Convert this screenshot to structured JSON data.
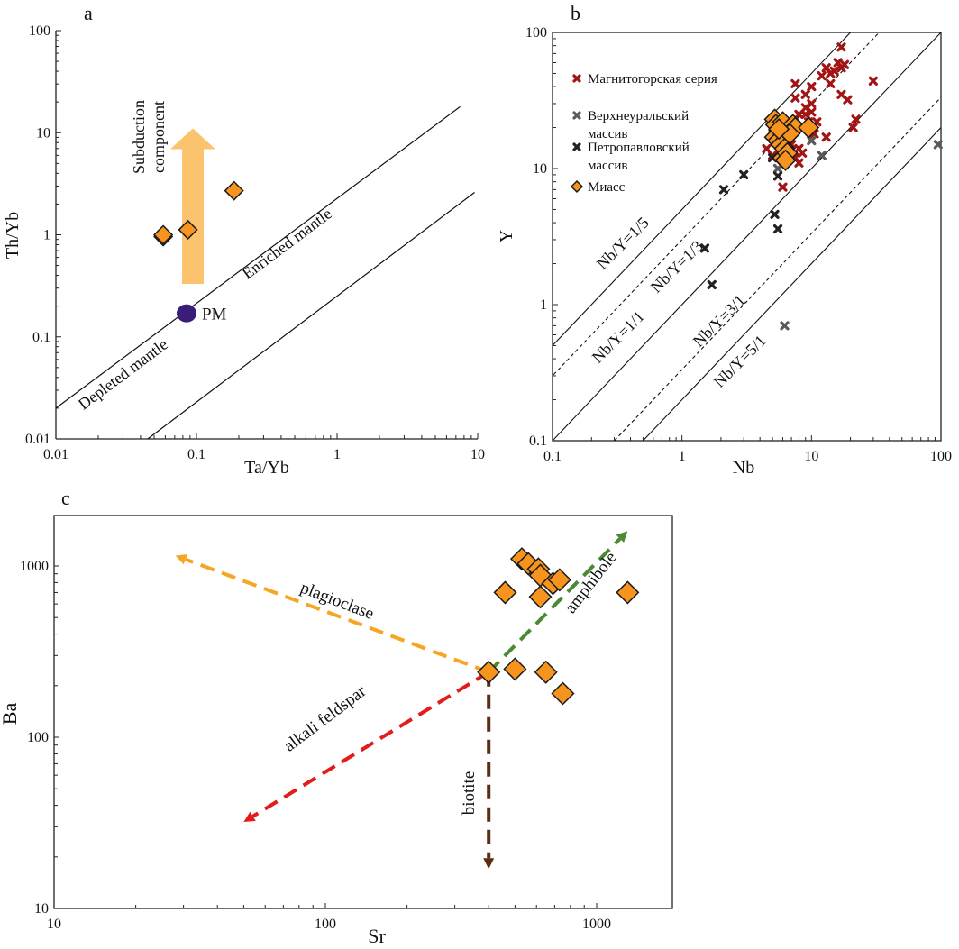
{
  "chart_data": [
    {
      "panel": "a",
      "type": "scatter",
      "title": "a",
      "xlabel": "Ta/Yb",
      "ylabel": "Th/Yb",
      "xscale": "log",
      "yscale": "log",
      "xlim": [
        0.01,
        10
      ],
      "ylim": [
        0.01,
        100
      ],
      "xticks": [
        "0.01",
        "0.1",
        "1",
        "10"
      ],
      "yticks": [
        "0.01",
        "0.1",
        "1",
        "10",
        "100"
      ],
      "grid": false,
      "mantle_array_lines": [
        {
          "name": "upper",
          "points": [
            [
              0.01,
              0.02
            ],
            [
              7.5,
              18
            ]
          ]
        },
        {
          "name": "lower",
          "points": [
            [
              0.045,
              0.01
            ],
            [
              9.5,
              2.6
            ]
          ]
        }
      ],
      "region_labels": [
        "Depleted mantle",
        "Enriched mantle"
      ],
      "reference_point": {
        "label": "PM",
        "x": 0.085,
        "y": 0.17,
        "color": "#3a1d78"
      },
      "arrow": {
        "label_line1": "Subduction",
        "label_line2": "component",
        "from_y": 0.33,
        "to_y": 11,
        "x": 0.1,
        "color": "#fcc36e"
      },
      "series": [
        {
          "name": "Миасс",
          "marker": "diamond",
          "color": "#f7941d",
          "points": [
            [
              0.058,
              0.96
            ],
            [
              0.058,
              1.0
            ],
            [
              0.087,
              1.12
            ],
            [
              0.185,
              2.7
            ]
          ]
        }
      ]
    },
    {
      "panel": "b",
      "type": "scatter",
      "title": "b",
      "xlabel": "Nb",
      "ylabel": "Y",
      "xscale": "log",
      "yscale": "log",
      "xlim": [
        0.1,
        100
      ],
      "ylim": [
        0.1,
        100
      ],
      "xticks": [
        "0.1",
        "1",
        "10",
        "100"
      ],
      "yticks": [
        "0.1",
        "1",
        "10",
        "100"
      ],
      "grid": false,
      "ratio_lines": [
        {
          "label": "Nb/Y=1/5",
          "ratio": 0.2,
          "style": "solid"
        },
        {
          "label": "Nb/Y=1/3",
          "ratio": 0.3333,
          "style": "dashed"
        },
        {
          "label": "Nb/Y=1/1",
          "ratio": 1,
          "style": "solid"
        },
        {
          "label": "Nb/Y=3/1",
          "ratio": 3,
          "style": "dashed"
        },
        {
          "label": "Nb/Y=5/1",
          "ratio": 5,
          "style": "solid"
        }
      ],
      "legend": {
        "position": "top-left"
      },
      "series": [
        {
          "name": "Магнитогорская серия",
          "marker": "x",
          "color": "#a31515",
          "points": [
            [
              17,
              78
            ],
            [
              13,
              55
            ],
            [
              14,
              50
            ],
            [
              15,
              52
            ],
            [
              16,
              60
            ],
            [
              17,
              55
            ],
            [
              18,
              58
            ],
            [
              12,
              48
            ],
            [
              14,
              42
            ],
            [
              10,
              40
            ],
            [
              9,
              35
            ],
            [
              7.5,
              42
            ],
            [
              7.5,
              33
            ],
            [
              17,
              35
            ],
            [
              19,
              32
            ],
            [
              30,
              44
            ],
            [
              10,
              30
            ],
            [
              9,
              28
            ],
            [
              10,
              26
            ],
            [
              9,
              25
            ],
            [
              8,
              25
            ],
            [
              9.5,
              22
            ],
            [
              11,
              22
            ],
            [
              7,
              15
            ],
            [
              8,
              14
            ],
            [
              7.5,
              12
            ],
            [
              8,
              11
            ],
            [
              8.5,
              13
            ],
            [
              10.5,
              18
            ],
            [
              13,
              17
            ],
            [
              22,
              23
            ],
            [
              21,
              20
            ],
            [
              4.5,
              14
            ],
            [
              5,
              12.5
            ],
            [
              6,
              7.3
            ]
          ]
        },
        {
          "name": "Верхнеуральский массив",
          "marker": "x",
          "color": "#5a5a5a",
          "points": [
            [
              10,
              16
            ],
            [
              12,
              12.5
            ],
            [
              5.5,
              10
            ],
            [
              95,
              15
            ],
            [
              6.2,
              0.7
            ]
          ]
        },
        {
          "name": "Петропавловский массив",
          "marker": "x",
          "color": "#222222",
          "points": [
            [
              3,
              9
            ],
            [
              2.1,
              7
            ],
            [
              5.5,
              8.8
            ],
            [
              5.2,
              4.6
            ],
            [
              5.5,
              3.6
            ],
            [
              1.5,
              2.6
            ],
            [
              1.7,
              1.4
            ],
            [
              5,
              12
            ]
          ]
        },
        {
          "name": "Миасс",
          "marker": "diamond",
          "color": "#f7941d",
          "points": [
            [
              5.2,
              23
            ],
            [
              5.3,
              21
            ],
            [
              5.6,
              19
            ],
            [
              6.0,
              22
            ],
            [
              5.2,
              17
            ],
            [
              5.5,
              16
            ],
            [
              5.8,
              15
            ],
            [
              6.2,
              14
            ],
            [
              6.0,
              12
            ],
            [
              6.5,
              13
            ],
            [
              7.2,
              21
            ],
            [
              7.5,
              20
            ],
            [
              6.8,
              18
            ],
            [
              9.5,
              20
            ],
            [
              5.6,
              19.5
            ],
            [
              6.3,
              11.5
            ]
          ]
        }
      ]
    },
    {
      "panel": "c",
      "type": "scatter",
      "title": "c",
      "xlabel": "Sr",
      "ylabel": "Ba",
      "xscale": "log",
      "yscale": "log",
      "xlim": [
        10,
        2000
      ],
      "ylim": [
        10,
        2000
      ],
      "xticks": [
        "10",
        "100",
        "1000"
      ],
      "yticks": [
        "10",
        "100",
        "1000"
      ],
      "grid": false,
      "vectors": [
        {
          "label": "plagioclase",
          "from": [
            400,
            240
          ],
          "to": [
            28,
            1150
          ],
          "color": "#f5a623"
        },
        {
          "label": "alkali feldspar",
          "from": [
            400,
            240
          ],
          "to": [
            50,
            32
          ],
          "color": "#e31b1b"
        },
        {
          "label": "amphibole",
          "from": [
            400,
            240
          ],
          "to": [
            1300,
            1600
          ],
          "color": "#4a8a35"
        },
        {
          "label": "biotite",
          "from": [
            400,
            240
          ],
          "to": [
            400,
            17
          ],
          "color": "#5a2d10"
        }
      ],
      "series": [
        {
          "name": "Миасс",
          "marker": "diamond",
          "color": "#f7941d",
          "points": [
            [
              400,
              240
            ],
            [
              500,
              250
            ],
            [
              650,
              240
            ],
            [
              750,
              180
            ],
            [
              460,
              700
            ],
            [
              620,
              660
            ],
            [
              530,
              1100
            ],
            [
              560,
              1030
            ],
            [
              610,
              960
            ],
            [
              620,
              880
            ],
            [
              690,
              790
            ],
            [
              730,
              830
            ],
            [
              1300,
              700
            ]
          ]
        }
      ]
    }
  ]
}
